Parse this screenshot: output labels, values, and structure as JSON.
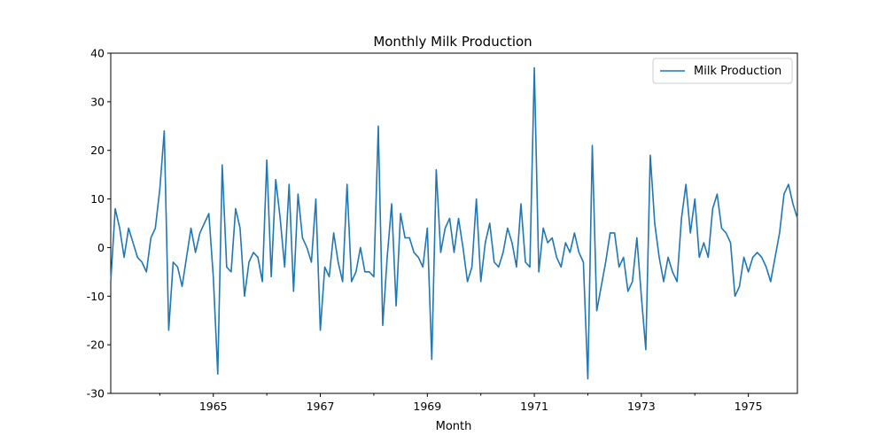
{
  "chart_data": {
    "type": "line",
    "title": "Monthly Milk Production",
    "xlabel": "Month",
    "ylabel": "",
    "xlim": [
      "1963-02",
      "1975-12"
    ],
    "ylim": [
      -30,
      40
    ],
    "yticks": [
      -30,
      -20,
      -10,
      0,
      10,
      20,
      30,
      40
    ],
    "xticks": [
      "1965",
      "1967",
      "1969",
      "1971",
      "1973",
      "1975"
    ],
    "grid": false,
    "legend": "top-right",
    "colors": {
      "series": "#1f77b4"
    },
    "series": [
      {
        "name": "Milk Production",
        "x": [
          "1963-02",
          "1963-03",
          "1963-04",
          "1963-05",
          "1963-06",
          "1963-07",
          "1963-08",
          "1963-09",
          "1963-10",
          "1963-11",
          "1963-12",
          "1964-01",
          "1964-02",
          "1964-03",
          "1964-04",
          "1964-05",
          "1964-06",
          "1964-07",
          "1964-08",
          "1964-09",
          "1964-10",
          "1964-11",
          "1964-12",
          "1965-01",
          "1965-02",
          "1965-03",
          "1965-04",
          "1965-05",
          "1965-06",
          "1965-07",
          "1965-08",
          "1965-09",
          "1965-10",
          "1965-11",
          "1965-12",
          "1966-01",
          "1966-02",
          "1966-03",
          "1966-04",
          "1966-05",
          "1966-06",
          "1966-07",
          "1966-08",
          "1966-09",
          "1966-10",
          "1966-11",
          "1966-12",
          "1967-01",
          "1967-02",
          "1967-03",
          "1967-04",
          "1967-05",
          "1967-06",
          "1967-07",
          "1967-08",
          "1967-09",
          "1967-10",
          "1967-11",
          "1967-12",
          "1968-01",
          "1968-02",
          "1968-03",
          "1968-04",
          "1968-05",
          "1968-06",
          "1968-07",
          "1968-08",
          "1968-09",
          "1968-10",
          "1968-11",
          "1968-12",
          "1969-01",
          "1969-02",
          "1969-03",
          "1969-04",
          "1969-05",
          "1969-06",
          "1969-07",
          "1969-08",
          "1969-09",
          "1969-10",
          "1969-11",
          "1969-12",
          "1970-01",
          "1970-02",
          "1970-03",
          "1970-04",
          "1970-05",
          "1970-06",
          "1970-07",
          "1970-08",
          "1970-09",
          "1970-10",
          "1970-11",
          "1970-12",
          "1971-01",
          "1971-02",
          "1971-03",
          "1971-04",
          "1971-05",
          "1971-06",
          "1971-07",
          "1971-08",
          "1971-09",
          "1971-10",
          "1971-11",
          "1971-12",
          "1972-01",
          "1972-02",
          "1972-03",
          "1972-04",
          "1972-05",
          "1972-06",
          "1972-07",
          "1972-08",
          "1972-09",
          "1972-10",
          "1972-11",
          "1972-12",
          "1973-01",
          "1973-02",
          "1973-03",
          "1973-04",
          "1973-05",
          "1973-06",
          "1973-07",
          "1973-08",
          "1973-09",
          "1973-10",
          "1973-11",
          "1973-12",
          "1974-01",
          "1974-02",
          "1974-03",
          "1974-04",
          "1974-05",
          "1974-06",
          "1974-07",
          "1974-08",
          "1974-09",
          "1974-10",
          "1974-11",
          "1974-12",
          "1975-01",
          "1975-02",
          "1975-03",
          "1975-04",
          "1975-05",
          "1975-06",
          "1975-07",
          "1975-08",
          "1975-09",
          "1975-10",
          "1975-11",
          "1975-12"
        ],
        "y": [
          -7,
          8,
          4,
          -2,
          4,
          1,
          -2,
          -3,
          -5,
          2,
          4,
          12,
          24,
          -17,
          -3,
          -4,
          -8,
          -2,
          4,
          -1,
          3,
          5,
          7,
          -6,
          -26,
          17,
          -4,
          -5,
          8,
          4,
          -10,
          -3,
          -1,
          -2,
          -7,
          18,
          -6,
          14,
          6,
          -4,
          13,
          -9,
          11,
          2,
          0,
          -3,
          10,
          -17,
          -4,
          -6,
          3,
          -3,
          -7,
          13,
          -7,
          -5,
          0,
          -5,
          -5,
          -6,
          25,
          -16,
          -2,
          9,
          -12,
          7,
          2,
          2,
          -1,
          -2,
          -4,
          4,
          -23,
          16,
          -1,
          4,
          6,
          -1,
          6,
          0,
          -7,
          -4,
          10,
          -7,
          1,
          5,
          -3,
          -4,
          -1,
          4,
          1,
          -4,
          9,
          -3,
          -4,
          37,
          -5,
          4,
          1,
          2,
          -2,
          -4,
          1,
          -1,
          3,
          -1,
          -3,
          -27,
          21,
          -13,
          -8,
          -3,
          3,
          3,
          -4,
          -2,
          -9,
          -7,
          2,
          -10,
          -21,
          19,
          5,
          -2,
          -7,
          -2,
          -5,
          -7,
          6,
          13,
          3,
          10,
          -2,
          1,
          -2,
          8,
          11,
          4,
          3,
          1,
          -10,
          -8,
          -2,
          -5,
          -2,
          -1,
          -2,
          -4,
          -7,
          -2,
          3,
          11,
          13,
          9,
          6
        ]
      }
    ]
  }
}
